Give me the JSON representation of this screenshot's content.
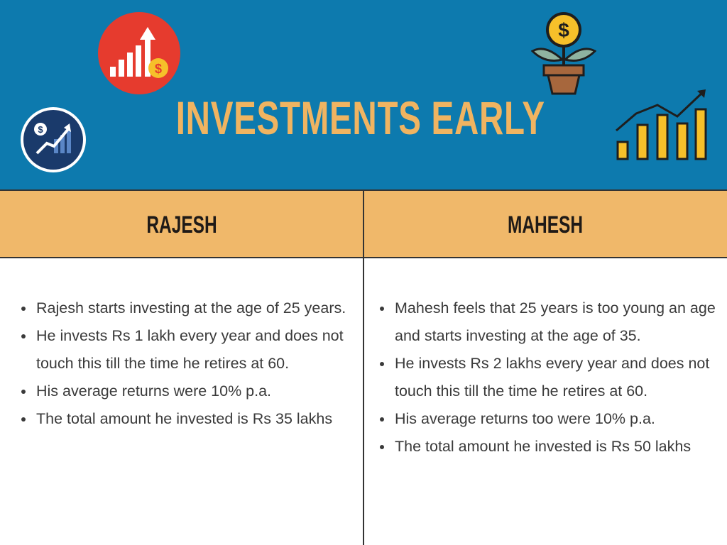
{
  "header": {
    "title": "INVESTMENTS EARLY"
  },
  "columns": [
    {
      "heading": "RAJESH",
      "bullets": [
        "Rajesh starts investing at the age of 25 years.",
        "He invests Rs 1 lakh every year and does not touch this till the time he retires at 60.",
        "His average returns were 10% p.a.",
        "The total amount he invested is Rs 35 lakhs"
      ]
    },
    {
      "heading": "MAHESH",
      "bullets": [
        "Mahesh feels that 25 years is too young an age and starts investing at the age of 35.",
        "He invests Rs 2 lakhs every year and does not touch this till the time he retires at 60.",
        "His average returns too were 10% p.a.",
        "The total amount he invested is Rs 50 lakhs"
      ]
    }
  ]
}
